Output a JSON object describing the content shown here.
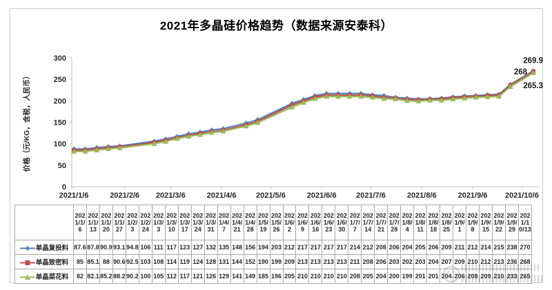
{
  "title": "2021年多晶硅价格趋势（数据来源安泰科）",
  "y_axis": {
    "label": "价格（元/KG，含税，人民币）",
    "ticks": [
      0,
      50,
      100,
      150,
      200,
      250,
      300
    ]
  },
  "x_axis": {
    "tick_labels": [
      "2021/1/6",
      "2021/2/6",
      "2021/3/6",
      "2021/4/6",
      "2021/5/6",
      "2021/6/6",
      "2021/7/6",
      "2021/8/6",
      "2021/9/6",
      "2021/10/6"
    ]
  },
  "chart_data": {
    "type": "line",
    "title": "2021年多晶硅价格趋势（数据来源安泰科）",
    "xlabel": "",
    "ylabel": "价格（元/KG，含税，人民币）",
    "ylim": [
      0,
      300
    ],
    "grid": false,
    "legend_position": "table-left",
    "x": [
      "2021/1/6",
      "2021/1/13",
      "2021/1/20",
      "2021/1/27",
      "2021/2/3",
      "2021/2/24",
      "2021/3/3",
      "2021/3/10",
      "2021/3/17",
      "2021/3/24",
      "2021/3/31",
      "2021/4/7",
      "2021/4/21",
      "2021/4/28",
      "2021/5/19",
      "2021/5/26",
      "2021/6/2",
      "2021/6/9",
      "2021/6/16",
      "2021/6/23",
      "2021/6/30",
      "2021/7/7",
      "2021/7/14",
      "2021/7/21",
      "2021/7/28",
      "2021/8/4",
      "2021/8/11",
      "2021/8/18",
      "2021/8/25",
      "2021/9/1",
      "2021/9/8",
      "2021/9/15",
      "2021/9/22",
      "2021/9/29",
      "2021/10/13"
    ],
    "series": [
      {
        "name": "单晶复投料",
        "marker": "diamond",
        "color": "#4F81BD",
        "end_label": "269.9",
        "values": [
          87.6,
          87.8,
          90.9,
          93.1,
          94.8,
          106,
          111,
          117,
          123,
          127,
          132,
          135,
          148,
          156,
          194,
          203,
          212,
          217,
          217,
          217,
          217,
          214,
          212,
          208,
          206,
          204,
          205,
          206,
          209,
          211,
          212,
          214,
          215,
          238,
          270
        ]
      },
      {
        "name": "单晶致密料",
        "marker": "square",
        "color": "#C0504D",
        "end_label": "268",
        "values": [
          85,
          85.1,
          88,
          90.6,
          92.5,
          103,
          108,
          114,
          119,
          124,
          128,
          131,
          144,
          152,
          190,
          199,
          209,
          213,
          213,
          213,
          213,
          211,
          208,
          206,
          203,
          202,
          203,
          204,
          207,
          209,
          210,
          212,
          213,
          236,
          268
        ]
      },
      {
        "name": "单晶菜花料",
        "marker": "triangle",
        "color": "#9BBB59",
        "end_label": "265.3",
        "values": [
          82,
          82.1,
          85.2,
          88.2,
          90.2,
          100,
          105,
          112,
          117,
          121,
          126,
          129,
          141,
          149,
          185,
          196,
          205,
          210,
          210,
          210,
          210,
          208,
          205,
          204,
          200,
          199,
          201,
          201,
          204,
          206,
          208,
          209,
          210,
          233,
          265
        ]
      }
    ]
  },
  "watermark": {
    "icon": "smiley-logo"
  }
}
